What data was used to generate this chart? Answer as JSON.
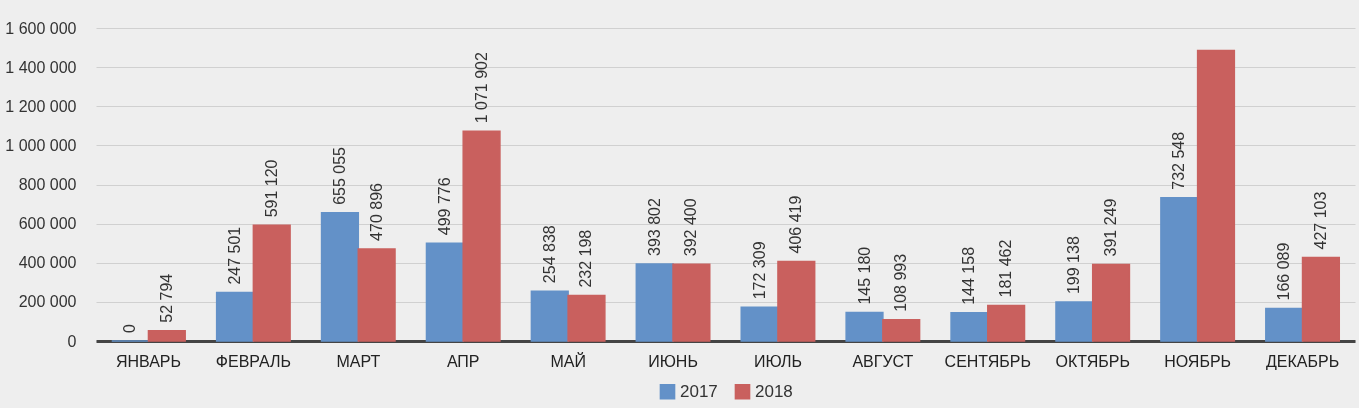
{
  "chart_data": {
    "type": "bar",
    "categories": [
      "ЯНВАРЬ",
      "ФЕВРАЛЬ",
      "МАРТ",
      "АПР",
      "МАЙ",
      "ИЮНЬ",
      "ИЮЛЬ",
      "АВГУСТ",
      "СЕНТЯБРЬ",
      "ОКТЯБРЬ",
      "НОЯБРЬ",
      "ДЕКАБРЬ"
    ],
    "series": [
      {
        "name": "2017",
        "color": "#6391c8",
        "values": [
          0,
          247501,
          655055,
          499776,
          254838,
          393802,
          172309,
          145180,
          144158,
          199138,
          732548,
          166089
        ],
        "value_labels": [
          "0",
          "247 501",
          "655 055",
          "499 776",
          "254 838",
          "393 802",
          "172 309",
          "145 180",
          "144 158",
          "199 138",
          "732 548",
          "166 089"
        ]
      },
      {
        "name": "2018",
        "color": "#c9605e",
        "values": [
          52794,
          591120,
          470896,
          1071902,
          232198,
          392400,
          406419,
          108993,
          181462,
          391249,
          1485000,
          427103
        ],
        "value_labels": [
          "52 794",
          "591 120",
          "470 896",
          "1 071 902",
          "232 198",
          "392 400",
          "406 419",
          "108 993",
          "181 462",
          "391 249",
          null,
          "427 103"
        ]
      }
    ],
    "ylim": [
      0,
      1600000
    ],
    "yticks": [
      {
        "value": 0,
        "label": "0"
      },
      {
        "value": 200000,
        "label": "200 000"
      },
      {
        "value": 400000,
        "label": "400 000"
      },
      {
        "value": 600000,
        "label": "600 000"
      },
      {
        "value": 800000,
        "label": "800 000"
      },
      {
        "value": 1000000,
        "label": "1 000 000"
      },
      {
        "value": 1200000,
        "label": "1 200 000"
      },
      {
        "value": 1400000,
        "label": "1 400 000"
      },
      {
        "value": 1600000,
        "label": "1 600 000"
      }
    ],
    "grid": "y",
    "legend": "bottom"
  }
}
